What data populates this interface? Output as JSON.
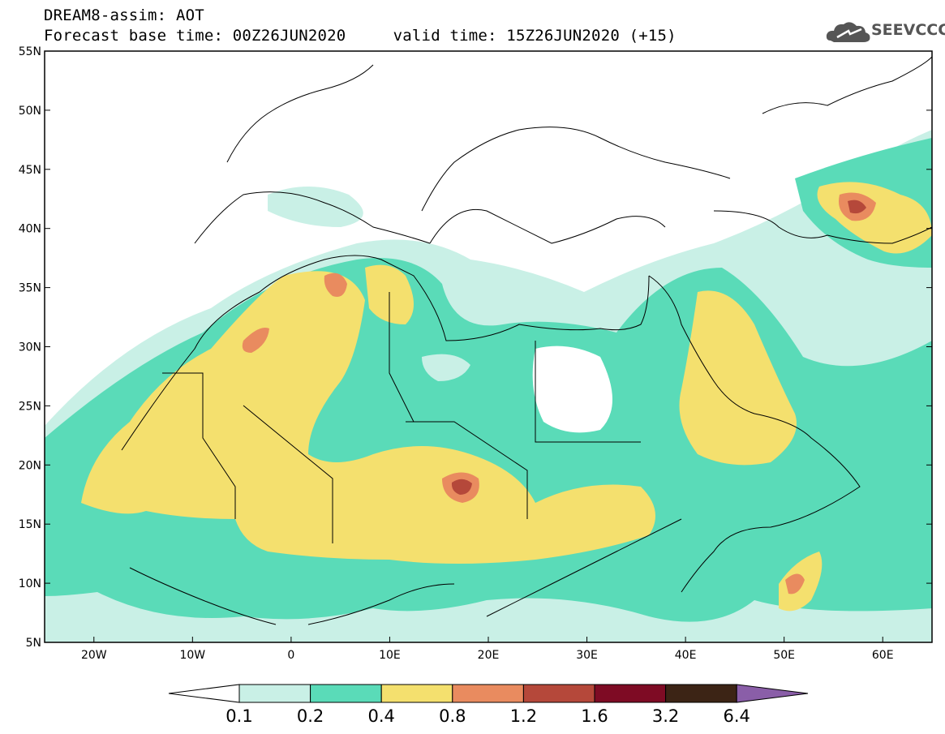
{
  "title": {
    "line1": "DREAM8-assim: AOT",
    "line2": "Forecast base time: 00Z26JUN2020     valid time: 15Z26JUN2020 (+15)"
  },
  "logo": {
    "text": "SEEVCCC",
    "icon": "cloud-icon"
  },
  "map": {
    "lon_range": [
      -25,
      65
    ],
    "lat_range": [
      5,
      55
    ],
    "lon_ticks": [
      {
        "value": -20,
        "label": "20W"
      },
      {
        "value": -10,
        "label": "10W"
      },
      {
        "value": 0,
        "label": "0"
      },
      {
        "value": 10,
        "label": "10E"
      },
      {
        "value": 20,
        "label": "20E"
      },
      {
        "value": 30,
        "label": "30E"
      },
      {
        "value": 40,
        "label": "40E"
      },
      {
        "value": 50,
        "label": "50E"
      },
      {
        "value": 60,
        "label": "60E"
      }
    ],
    "lat_ticks": [
      {
        "value": 5,
        "label": "5N"
      },
      {
        "value": 10,
        "label": "10N"
      },
      {
        "value": 15,
        "label": "15N"
      },
      {
        "value": 20,
        "label": "20N"
      },
      {
        "value": 25,
        "label": "25N"
      },
      {
        "value": 30,
        "label": "30N"
      },
      {
        "value": 35,
        "label": "35N"
      },
      {
        "value": 40,
        "label": "40N"
      },
      {
        "value": 45,
        "label": "45N"
      },
      {
        "value": 50,
        "label": "50N"
      },
      {
        "value": 55,
        "label": "55N"
      }
    ]
  },
  "colorbar": {
    "labels": [
      "0.1",
      "0.2",
      "0.4",
      "0.8",
      "1.2",
      "1.6",
      "3.2",
      "6.4"
    ],
    "colors": [
      "#ffffff",
      "#c9f0e6",
      "#5adbb8",
      "#f4e06e",
      "#e98b5f",
      "#b5483a",
      "#7e0b24",
      "#3c2415",
      "#8a5ea8"
    ]
  },
  "aot_colors": {
    "c1": "#c9f0e6",
    "c2": "#5adbb8",
    "c3": "#f4e06e",
    "c4": "#e98b5f",
    "c5": "#b5483a"
  }
}
